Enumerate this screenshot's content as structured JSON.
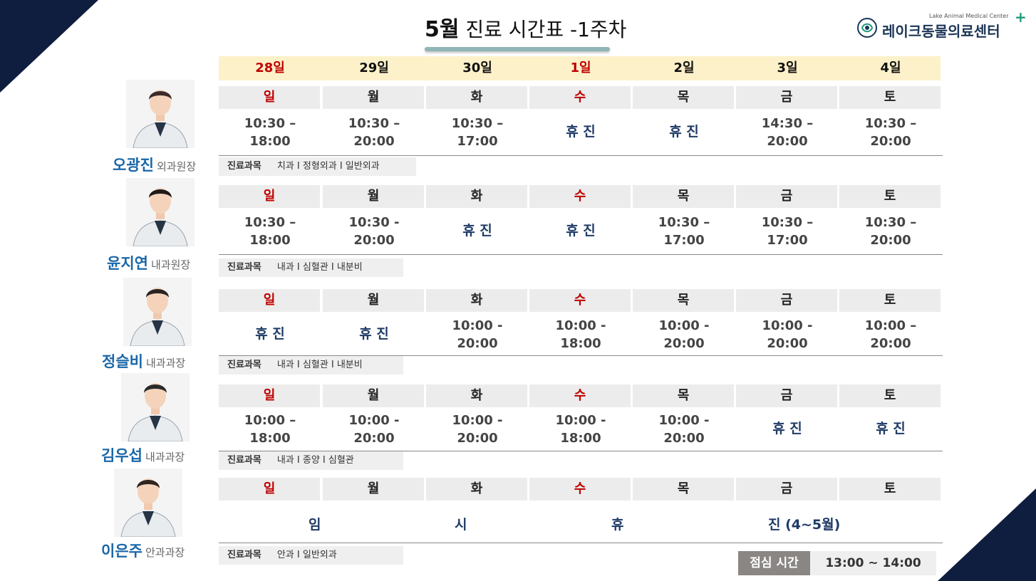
{
  "header": {
    "month": "5월",
    "title_rest": " 진료 시간표 -1주차"
  },
  "logo": {
    "subtitle": "Lake Animal Medical Center",
    "name": "레이크동물의료센터",
    "plus": "+"
  },
  "dates": [
    "28일",
    "29일",
    "30일",
    "1일",
    "2일",
    "3일",
    "4일"
  ],
  "days": [
    "일",
    "월",
    "화",
    "수",
    "목",
    "금",
    "토"
  ],
  "colors": {
    "navy": "#0f1d3f",
    "holiday_red": "#c00000",
    "name_blue": "#1a67a8",
    "date_bg": "#fdf1c9"
  },
  "doctors": [
    {
      "name": "오광진",
      "rank": "외과원장",
      "avatar_icon": "male-doctor-avatar",
      "times": [
        [
          "10:30 –",
          "18:00"
        ],
        [
          "10:30 –",
          "20:00"
        ],
        [
          "10:30 –",
          "17:00"
        ],
        [
          "휴 진"
        ],
        [
          "휴 진"
        ],
        [
          "14:30 –",
          "20:00"
        ],
        [
          "10:30 –",
          "20:00"
        ]
      ],
      "subject_label": "진료과목",
      "subjects": "치과 I 정형외과 I 일반외과"
    },
    {
      "name": "윤지연",
      "rank": "내과원장",
      "avatar_icon": "female-doctor-avatar",
      "times": [
        [
          "10:30 –",
          "18:00"
        ],
        [
          "10:30 -",
          "20:00"
        ],
        [
          "휴 진"
        ],
        [
          "휴 진"
        ],
        [
          "10:30 –",
          "17:00"
        ],
        [
          "10:30 –",
          "17:00"
        ],
        [
          "10:30 –",
          "20:00"
        ]
      ],
      "subject_label": "진료과목",
      "subjects": "내과 I 심혈관 I 내분비"
    },
    {
      "name": "정슬비",
      "rank": "내과과장",
      "avatar_icon": "female-doctor-with-dog-avatar",
      "times": [
        [
          "휴 진"
        ],
        [
          "휴 진"
        ],
        [
          "10:00 -",
          "20:00"
        ],
        [
          "10:00 -",
          "18:00"
        ],
        [
          "10:00 -",
          "20:00"
        ],
        [
          "10:00 -",
          "20:00"
        ],
        [
          "10:00 –",
          "20:00"
        ]
      ],
      "subject_label": "진료과목",
      "subjects": "내과 I 심혈관 I 내분비"
    },
    {
      "name": "김우섭",
      "rank": "내과과장",
      "avatar_icon": "male-doctor-glasses-avatar",
      "times": [
        [
          "10:00 –",
          "18:00"
        ],
        [
          "10:00 -",
          "20:00"
        ],
        [
          "10:00 -",
          "20:00"
        ],
        [
          "10:00 -",
          "18:00"
        ],
        [
          "10:00 -",
          "20:00"
        ],
        [
          "휴 진"
        ],
        [
          "휴 진"
        ]
      ],
      "subject_label": "진료과목",
      "subjects": "내과 I 종양 I 심혈관"
    },
    {
      "name": "이은주",
      "rank": "안과과장",
      "avatar_icon": "female-doctor-avatar-2",
      "closed_words": [
        "임",
        "시",
        "휴",
        "진 (4~5월)"
      ],
      "subject_label": "진료과목",
      "subjects": "안과 I 일반외과"
    }
  ],
  "lunch": {
    "label": "점심 시간",
    "time": "13:00 ~ 14:00"
  }
}
